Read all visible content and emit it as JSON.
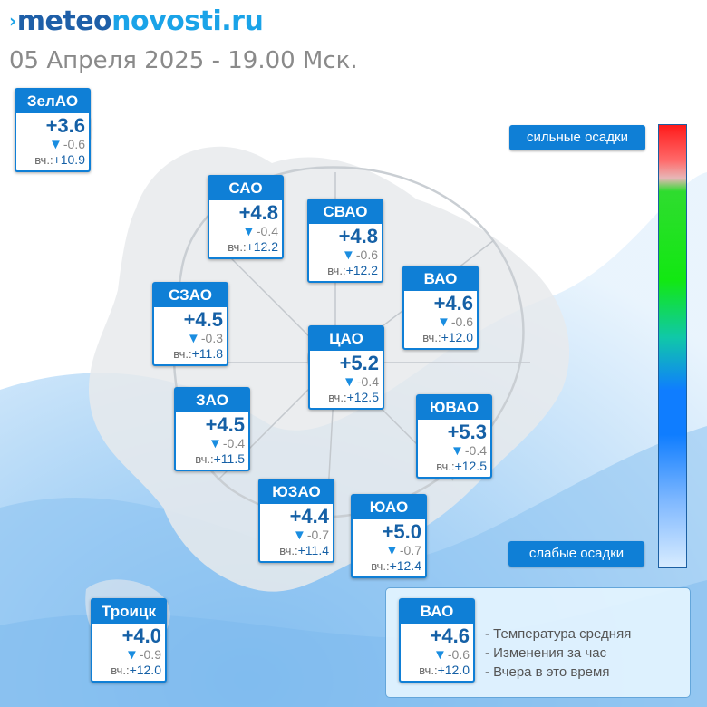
{
  "logo": {
    "prefix": "›",
    "part1": "meteo",
    "part2": "novosti.ru"
  },
  "subtitle": "05 Апреля 2025 - 19.00 Мск.",
  "districts": [
    {
      "name": "ЗелАО",
      "temp": "+3.6",
      "change": "-0.6",
      "yesterday_label": "вч.:",
      "yesterday": "+10.9"
    },
    {
      "name": "САО",
      "temp": "+4.8",
      "change": "-0.4",
      "yesterday_label": "вч.:",
      "yesterday": "+12.2"
    },
    {
      "name": "СВАО",
      "temp": "+4.8",
      "change": "-0.6",
      "yesterday_label": "вч.:",
      "yesterday": "+12.2"
    },
    {
      "name": "ВАО",
      "temp": "+4.6",
      "change": "-0.6",
      "yesterday_label": "вч.:",
      "yesterday": "+12.0"
    },
    {
      "name": "СЗАО",
      "temp": "+4.5",
      "change": "-0.3",
      "yesterday_label": "вч.:",
      "yesterday": "+11.8"
    },
    {
      "name": "ЦАО",
      "temp": "+5.2",
      "change": "-0.4",
      "yesterday_label": "вч.:",
      "yesterday": "+12.5"
    },
    {
      "name": "ЗАО",
      "temp": "+4.5",
      "change": "-0.4",
      "yesterday_label": "вч.:",
      "yesterday": "+11.5"
    },
    {
      "name": "ЮВАО",
      "temp": "+5.3",
      "change": "-0.4",
      "yesterday_label": "вч.:",
      "yesterday": "+12.5"
    },
    {
      "name": "ЮЗАО",
      "temp": "+4.4",
      "change": "-0.7",
      "yesterday_label": "вч.:",
      "yesterday": "+11.4"
    },
    {
      "name": "ЮАО",
      "temp": "+5.0",
      "change": "-0.7",
      "yesterday_label": "вч.:",
      "yesterday": "+12.4"
    },
    {
      "name": "Троицк",
      "temp": "+4.0",
      "change": "-0.9",
      "yesterday_label": "вч.:",
      "yesterday": "+12.0"
    }
  ],
  "scale": {
    "top_label": "сильные осадки",
    "bottom_label": "слабые осадки"
  },
  "legend": {
    "sample": {
      "name": "ВАО",
      "temp": "+4.6",
      "change": "-0.6",
      "yesterday_label": "вч.:",
      "yesterday": "+12.0"
    },
    "line1": "- Температура средняя",
    "line2": "- Изменения за час",
    "line3": "- Вчера в это время"
  },
  "colors": {
    "card_accent": "#0f7fd6",
    "temp_text": "#1560a6",
    "drop_arrow": "#1a8de0"
  },
  "icons": {
    "change_down": "▼"
  }
}
